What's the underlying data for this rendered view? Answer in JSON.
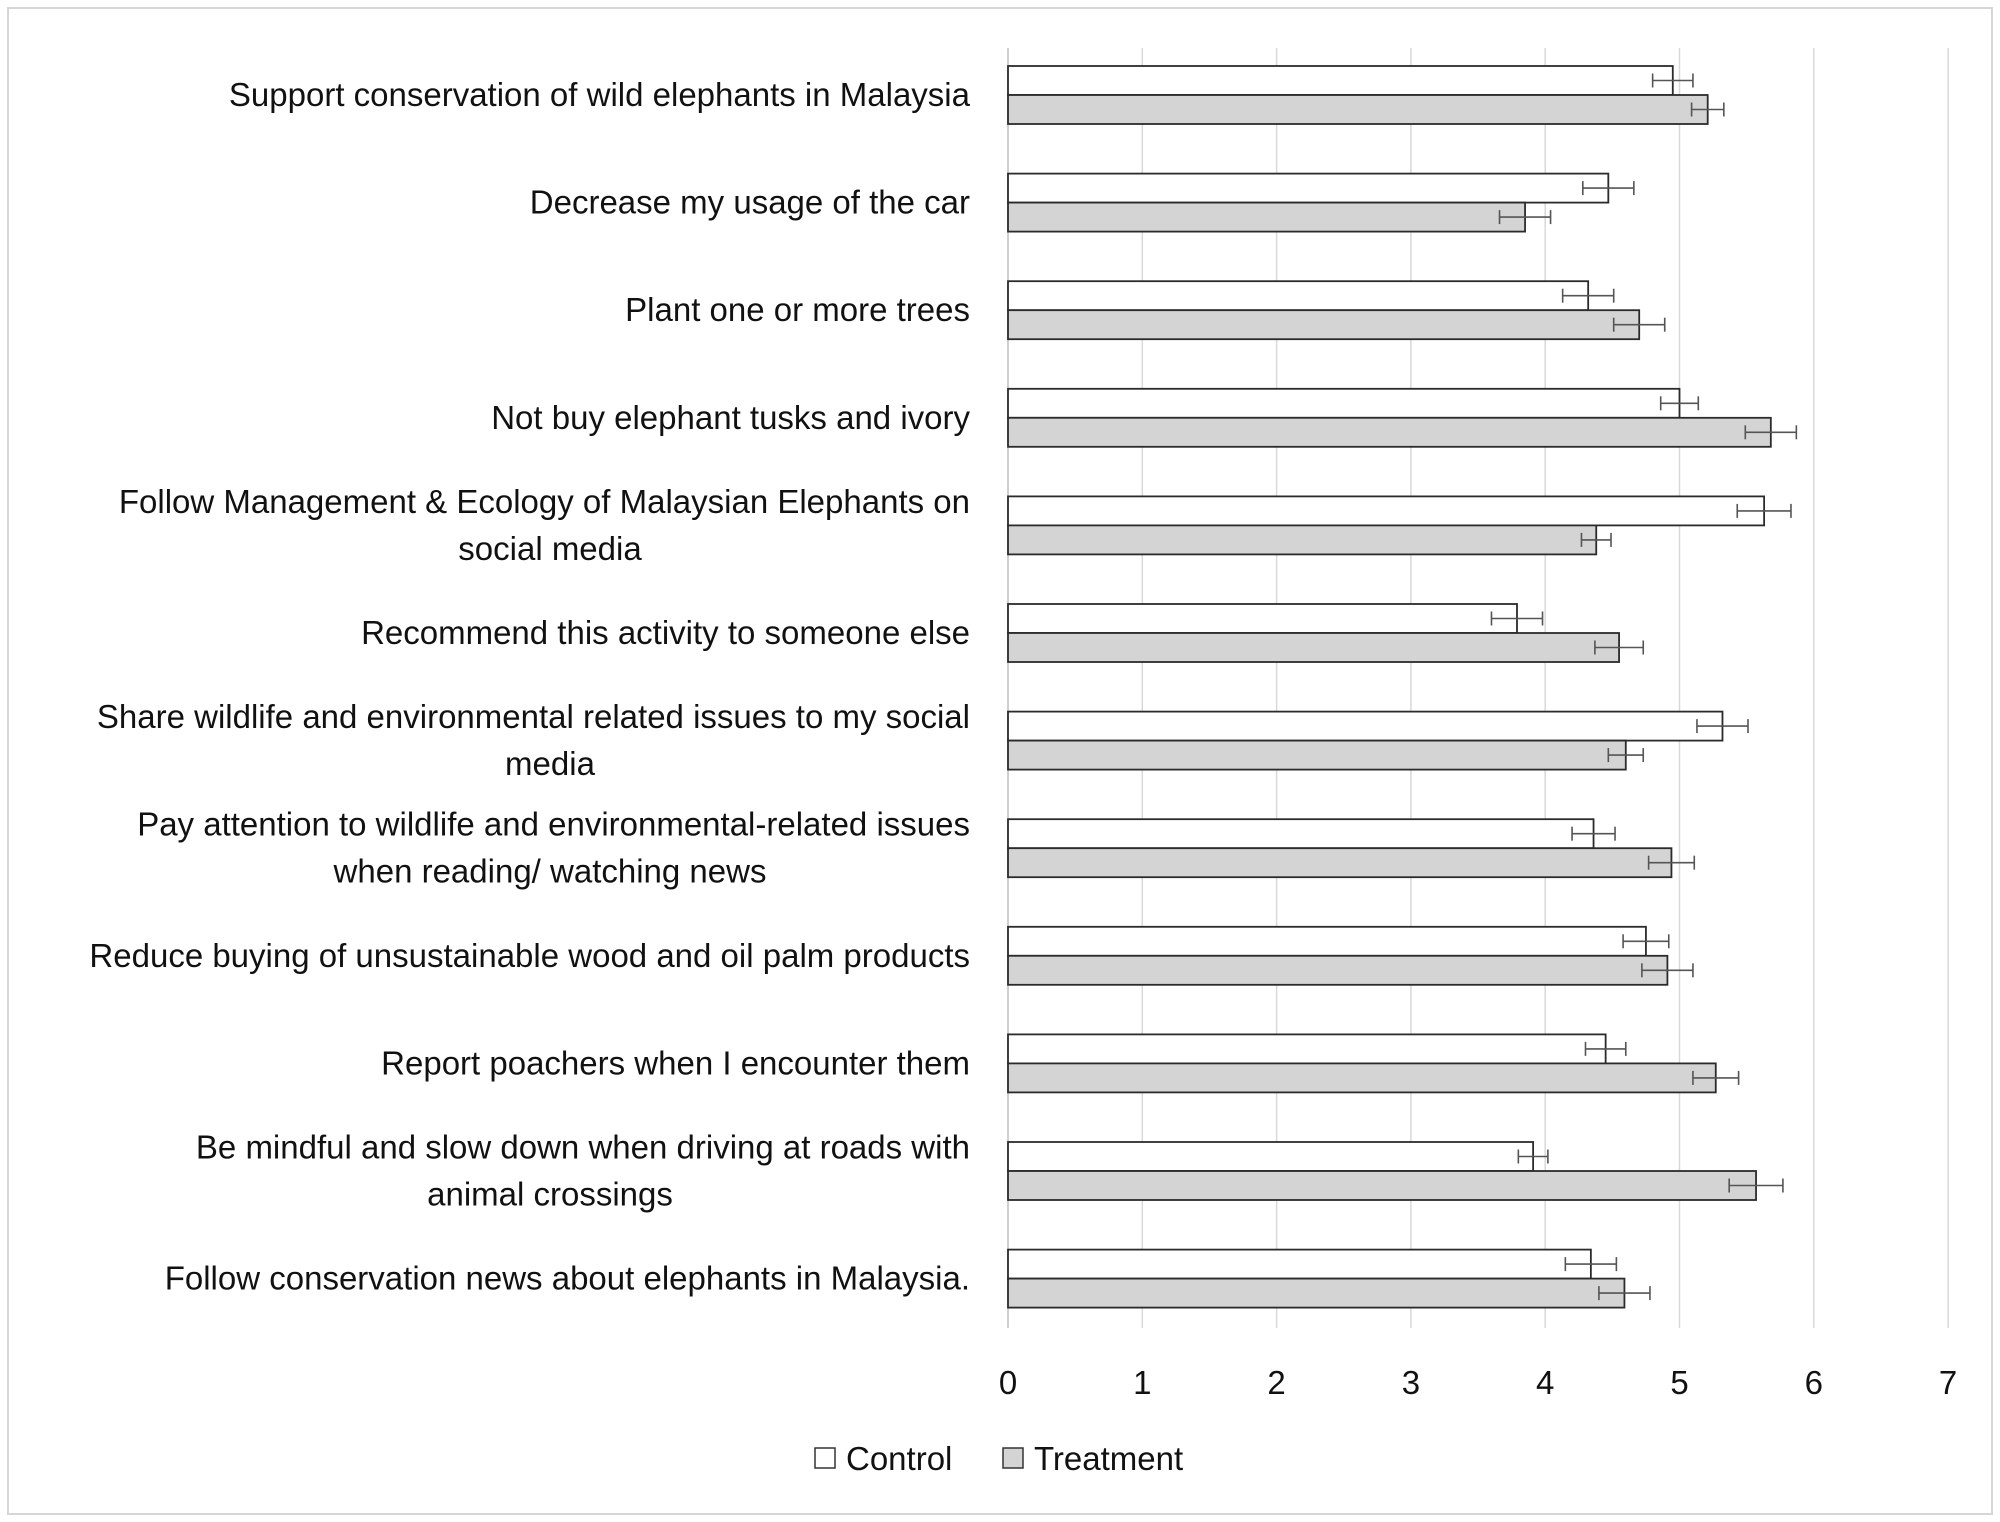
{
  "chart_data": {
    "type": "bar",
    "orientation": "horizontal",
    "categories": [
      "Support conservation of wild elephants in Malaysia",
      "Decrease my usage of the car",
      "Plant one or more trees",
      "Not buy elephant tusks and ivory",
      "Follow Management & Ecology of Malaysian Elephants on social media",
      "Recommend this activity to someone else",
      "Share wildlife and environmental related issues to my social media",
      "Pay attention to wildlife and environmental-related issues when reading/ watching news",
      "Reduce buying of unsustainable wood and oil palm products",
      "Report poachers when I encounter them",
      "Be mindful and slow down when driving at roads with animal crossings",
      "Follow conservation news about elephants in Malaysia."
    ],
    "category_label_lines": [
      [
        "Support conservation of wild elephants in Malaysia"
      ],
      [
        "Decrease my usage of the car"
      ],
      [
        "Plant one or more trees"
      ],
      [
        "Not buy elephant tusks and ivory"
      ],
      [
        "Follow Management & Ecology of Malaysian Elephants on",
        "social media"
      ],
      [
        "Recommend this activity to someone else"
      ],
      [
        "Share wildlife and environmental related issues to my social",
        "media"
      ],
      [
        "Pay attention to wildlife and environmental-related issues",
        "when reading/ watching news"
      ],
      [
        "Reduce buying of unsustainable wood and oil palm products"
      ],
      [
        "Report poachers when I encounter them"
      ],
      [
        "Be mindful and slow down when driving at roads with",
        "animal crossings"
      ],
      [
        "Follow conservation news about elephants in Malaysia."
      ]
    ],
    "series": [
      {
        "name": "Control",
        "color": "#ffffff",
        "values": [
          4.95,
          4.47,
          4.32,
          5.0,
          5.63,
          3.79,
          5.32,
          4.36,
          4.75,
          4.45,
          3.91,
          4.34
        ],
        "errors": [
          0.15,
          0.19,
          0.19,
          0.14,
          0.2,
          0.19,
          0.19,
          0.16,
          0.17,
          0.15,
          0.11,
          0.19
        ]
      },
      {
        "name": "Treatment",
        "color": "#d4d4d4",
        "values": [
          5.21,
          3.85,
          4.7,
          5.68,
          4.38,
          4.55,
          4.6,
          4.94,
          4.91,
          5.27,
          5.57,
          4.59
        ],
        "errors": [
          0.12,
          0.19,
          0.19,
          0.19,
          0.11,
          0.18,
          0.13,
          0.17,
          0.19,
          0.17,
          0.2,
          0.19
        ]
      }
    ],
    "xlim": [
      0,
      7
    ],
    "xticks": [
      "0",
      "1",
      "2",
      "3",
      "4",
      "5",
      "6",
      "7"
    ],
    "xlabel": "",
    "ylabel": "",
    "title": "",
    "grid": "vertical",
    "legend": "bottom"
  }
}
